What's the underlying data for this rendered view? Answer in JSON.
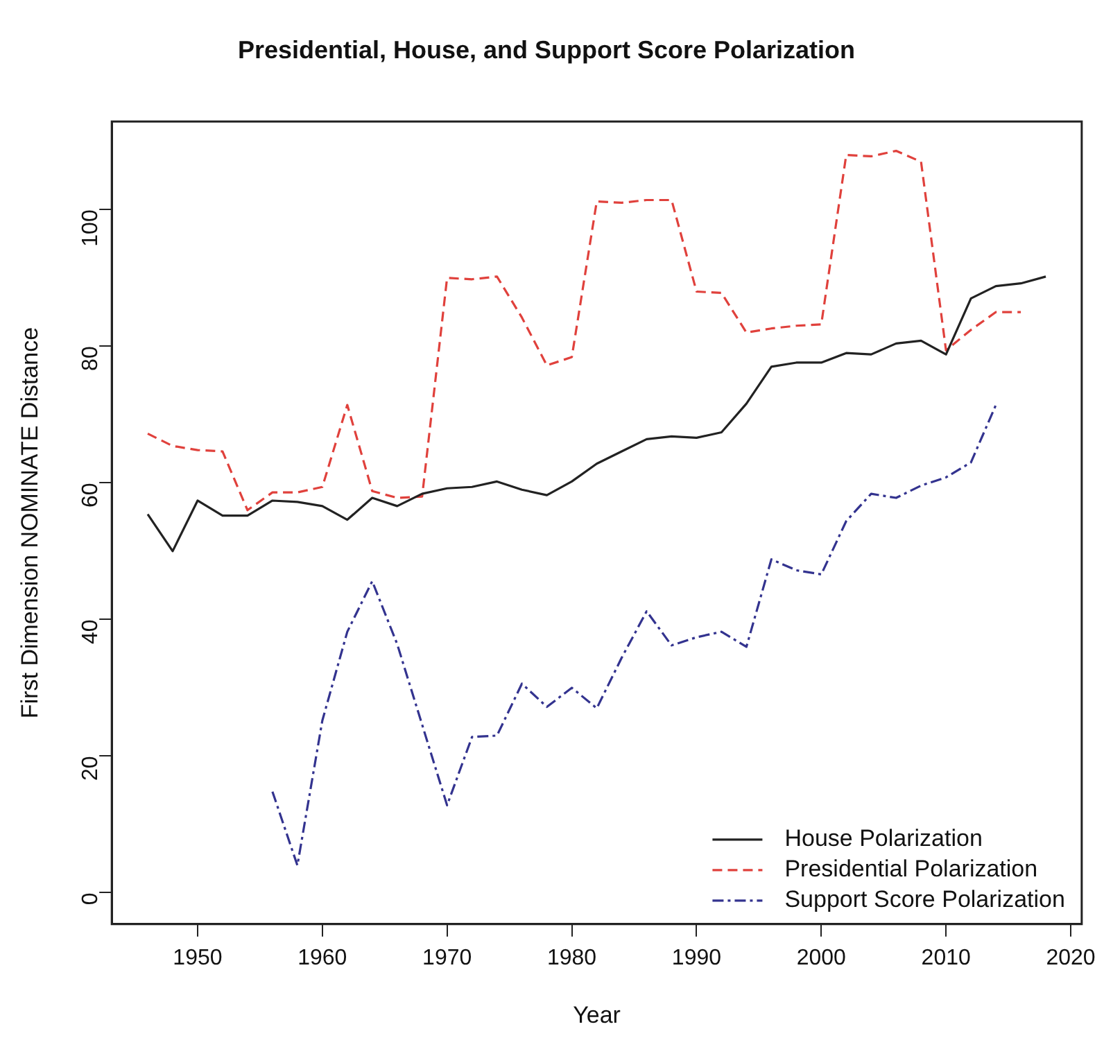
{
  "chart_data": {
    "type": "line",
    "title": "Presidential, House, and Support Score Polarization",
    "xlabel": "Year",
    "ylabel": "First Dimension NOMINATE Distance",
    "xlim": [
      1943.12,
      2020.88
    ],
    "xticks": [
      1950,
      1960,
      1970,
      1980,
      1990,
      2000,
      2010,
      2020
    ],
    "ylim": [
      -4.6,
      112.9
    ],
    "yticks": [
      0,
      20,
      40,
      60,
      80,
      100
    ],
    "grid": false,
    "legend": "bottom right",
    "marker": "none",
    "series": [
      {
        "name": "House Polarization",
        "color": "#222222",
        "line_style": "solid",
        "x": [
          1946,
          1948,
          1950,
          1952,
          1954,
          1956,
          1958,
          1960,
          1962,
          1964,
          1966,
          1968,
          1970,
          1972,
          1974,
          1976,
          1978,
          1980,
          1982,
          1984,
          1986,
          1988,
          1990,
          1992,
          1994,
          1996,
          1998,
          2000,
          2002,
          2004,
          2006,
          2008,
          2010,
          2012,
          2014,
          2016,
          2018
        ],
        "values": [
          55.4,
          50.0,
          57.4,
          55.2,
          55.2,
          57.4,
          57.2,
          56.6,
          54.6,
          57.8,
          56.6,
          58.4,
          59.2,
          59.4,
          60.2,
          59.0,
          58.2,
          60.2,
          62.8,
          64.6,
          66.4,
          66.8,
          66.6,
          67.4,
          71.6,
          77.0,
          77.6,
          77.6,
          79.0,
          78.8,
          80.4,
          80.8,
          78.8,
          87.0,
          88.8,
          89.2,
          90.2
        ]
      },
      {
        "name": "Presidential Polarization",
        "color": "#e0413c",
        "line_style": "dashed",
        "x": [
          1946,
          1948,
          1950,
          1952,
          1954,
          1956,
          1958,
          1960,
          1962,
          1964,
          1966,
          1968,
          1970,
          1972,
          1974,
          1976,
          1978,
          1980,
          1982,
          1984,
          1986,
          1988,
          1990,
          1992,
          1994,
          1996,
          1998,
          2000,
          2002,
          2004,
          2006,
          2008,
          2010,
          2012,
          2014,
          2016
        ],
        "values": [
          67.2,
          65.4,
          64.8,
          64.6,
          56.0,
          58.6,
          58.6,
          59.4,
          71.4,
          58.8,
          57.8,
          58.0,
          90.0,
          89.8,
          90.2,
          84.2,
          77.2,
          78.4,
          101.2,
          101.0,
          101.4,
          101.4,
          88.0,
          87.8,
          82.0,
          82.6,
          83.0,
          83.2,
          108.0,
          107.8,
          108.6,
          107.0,
          79.4,
          82.4,
          85.0,
          85.0
        ]
      },
      {
        "name": "Support Score Polarization",
        "color": "#33338f",
        "line_style": "dashdot",
        "x": [
          1956,
          1958,
          1960,
          1962,
          1964,
          1966,
          1968,
          1970,
          1972,
          1974,
          1976,
          1978,
          1980,
          1982,
          1984,
          1986,
          1988,
          1990,
          1992,
          1994,
          1996,
          1998,
          2000,
          2002,
          2004,
          2006,
          2008,
          2010,
          2012,
          2014
        ],
        "values": [
          14.8,
          4.0,
          25.2,
          38.2,
          45.6,
          36.4,
          24.6,
          12.8,
          22.8,
          23.0,
          30.6,
          27.2,
          30.0,
          27.0,
          34.4,
          41.2,
          36.2,
          37.4,
          38.2,
          36.0,
          48.8,
          47.2,
          46.6,
          54.4,
          58.4,
          57.8,
          59.6,
          60.8,
          63.0,
          71.4
        ]
      }
    ]
  }
}
